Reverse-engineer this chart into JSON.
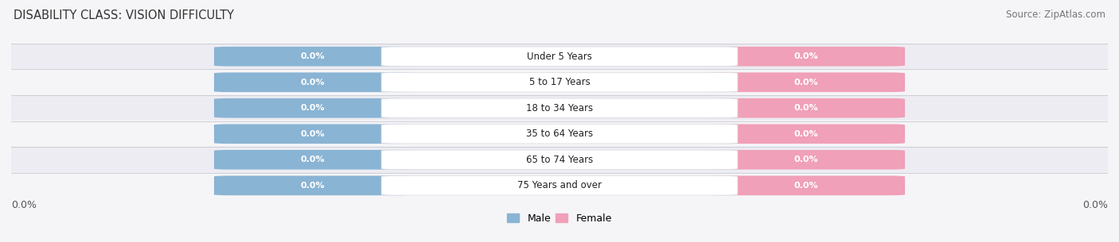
{
  "title": "DISABILITY CLASS: VISION DIFFICULTY",
  "source": "Source: ZipAtlas.com",
  "categories": [
    "Under 5 Years",
    "5 to 17 Years",
    "18 to 34 Years",
    "35 to 64 Years",
    "65 to 74 Years",
    "75 Years and over"
  ],
  "male_values": [
    0.0,
    0.0,
    0.0,
    0.0,
    0.0,
    0.0
  ],
  "female_values": [
    0.0,
    0.0,
    0.0,
    0.0,
    0.0,
    0.0
  ],
  "male_color": "#8ab4d4",
  "female_color": "#f0a0b8",
  "row_bg_even": "#ececf2",
  "row_bg_odd": "#f5f5f8",
  "fig_bg": "#f5f5f8",
  "axis_label": "0.0%",
  "xlim": [
    -1,
    1
  ],
  "title_fontsize": 10.5,
  "source_fontsize": 8.5,
  "figsize": [
    14.06,
    3.05
  ],
  "dpi": 100
}
